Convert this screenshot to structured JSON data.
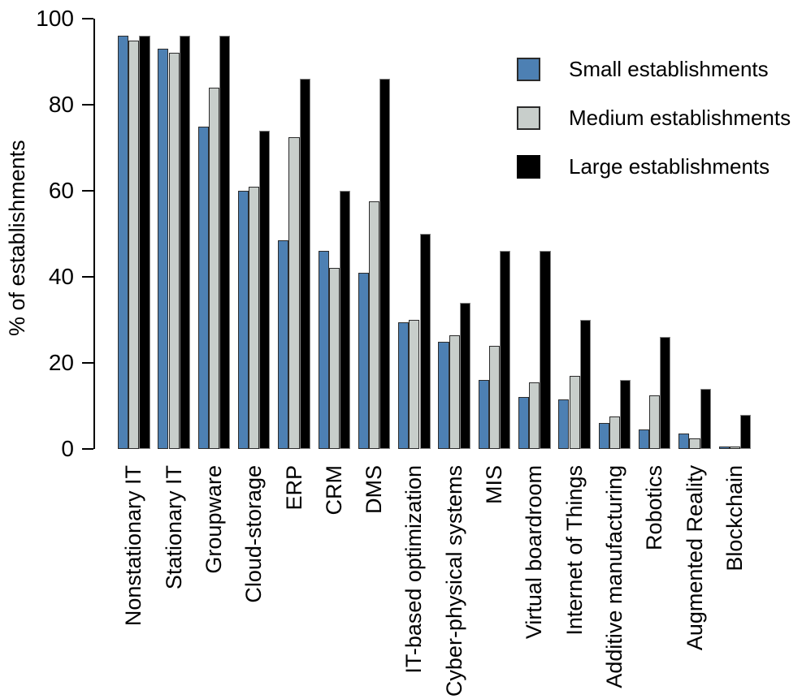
{
  "chart_data": {
    "type": "bar",
    "title": "",
    "xlabel": "",
    "ylabel": "% of establishments",
    "ylim": [
      0,
      100
    ],
    "yticks": [
      0,
      20,
      40,
      60,
      80,
      100
    ],
    "grid": false,
    "legend_position": "top-right-inside",
    "categories": [
      "Nonstationary IT",
      "Stationary IT",
      "Groupware",
      "Cloud-storage",
      "ERP",
      "CRM",
      "DMS",
      "IT-based optimization",
      "Cyber-physical systems",
      "MIS",
      "Virtual boardroom",
      "Internet of Things",
      "Additive manufacturing",
      "Robotics",
      "Augmented Reality",
      "Blockchain"
    ],
    "series": [
      {
        "name": "Small establishments",
        "color": "#4d80b3",
        "border_color": "#2b2b2b",
        "values": [
          96,
          93,
          75,
          60,
          48.5,
          46,
          41,
          29.5,
          25,
          16,
          12,
          11.5,
          6,
          4.5,
          3.5,
          0.5
        ]
      },
      {
        "name": "Medium establishments",
        "color": "#c8cecb",
        "border_color": "#2b2b2b",
        "values": [
          95,
          92,
          84,
          61,
          72.5,
          42,
          57.5,
          30,
          26.5,
          24,
          15.5,
          17,
          7.5,
          12.5,
          2.5,
          0.5
        ]
      },
      {
        "name": "Large establishments",
        "color": "#000000",
        "border_color": "#858585",
        "values": [
          96,
          96,
          96,
          74,
          86,
          60,
          86,
          50,
          34,
          46,
          46,
          30,
          16,
          26,
          14,
          8
        ]
      }
    ]
  }
}
